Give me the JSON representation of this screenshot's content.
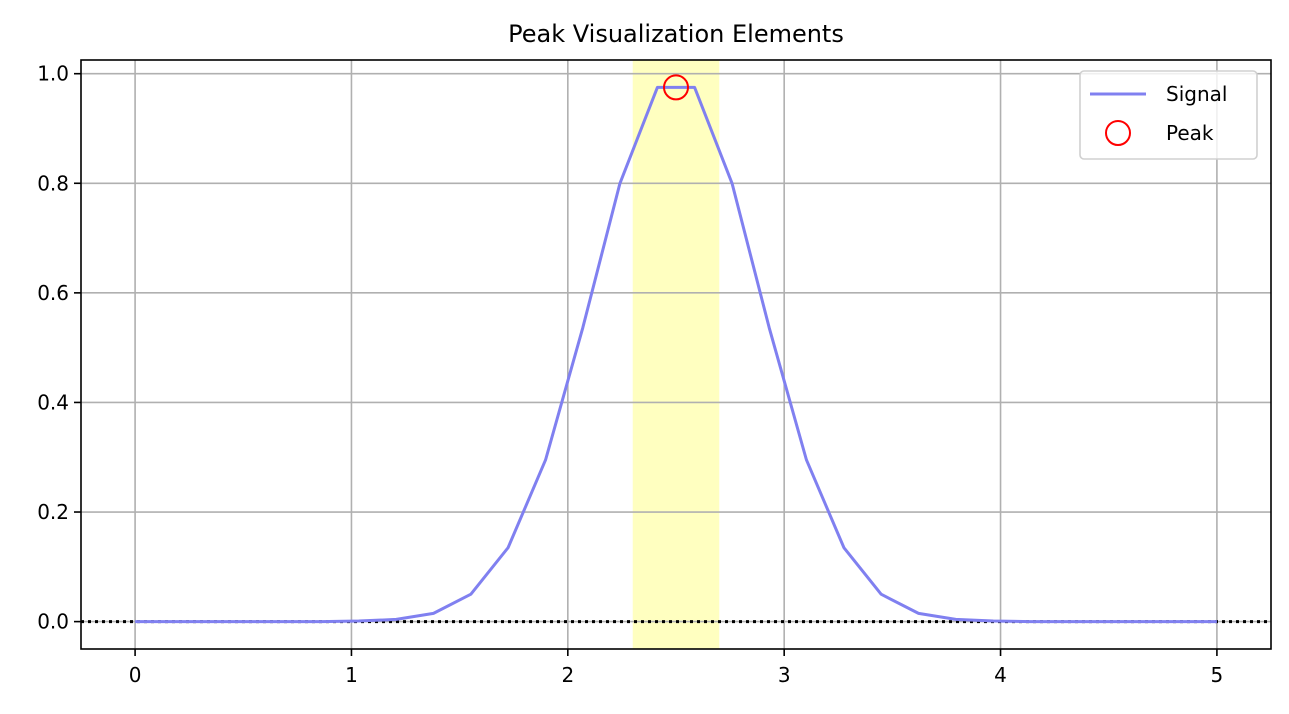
{
  "chart_data": {
    "type": "line",
    "title": "Peak Visualization Elements",
    "xlabel": "",
    "ylabel": "",
    "xlim": [
      -0.25,
      5.25
    ],
    "ylim": [
      -0.05,
      1.025
    ],
    "x_ticks": [
      0,
      1,
      2,
      3,
      4,
      5
    ],
    "y_ticks": [
      0.0,
      0.2,
      0.4,
      0.6,
      0.8,
      1.0
    ],
    "x_tick_labels": [
      "0",
      "1",
      "2",
      "3",
      "4",
      "5"
    ],
    "y_tick_labels": [
      "0.0",
      "0.2",
      "0.4",
      "0.6",
      "0.8",
      "1.0"
    ],
    "grid": true,
    "legend_position": "upper-right",
    "series": [
      {
        "name": "Signal",
        "color": "#8080f0",
        "x": [
          0,
          0.172,
          0.345,
          0.517,
          0.69,
          0.862,
          1.034,
          1.207,
          1.379,
          1.552,
          1.724,
          1.897,
          2.069,
          2.241,
          2.414,
          2.586,
          2.759,
          2.931,
          3.103,
          3.276,
          3.448,
          3.621,
          3.793,
          3.966,
          4.138,
          4.31,
          4.483,
          4.655,
          4.828,
          5.0
        ],
        "y": [
          0.0,
          0.0,
          0.0,
          0.0,
          0.0,
          0.0,
          0.001,
          0.004,
          0.015,
          0.05,
          0.135,
          0.295,
          0.536,
          0.8,
          0.975,
          0.975,
          0.8,
          0.536,
          0.295,
          0.135,
          0.05,
          0.015,
          0.004,
          0.001,
          0.0,
          0.0,
          0.0,
          0.0,
          0.0,
          0.0
        ]
      }
    ],
    "peak": {
      "name": "Peak",
      "x": 2.5,
      "y": 0.975,
      "color": "#ff0000"
    },
    "highlight_band": {
      "x_start": 2.3,
      "x_end": 2.7,
      "color": "#ffffc0"
    },
    "baseline": {
      "y": 0.0,
      "style": "dotted",
      "color": "#000000"
    },
    "legend": [
      "Signal",
      "Peak"
    ]
  }
}
